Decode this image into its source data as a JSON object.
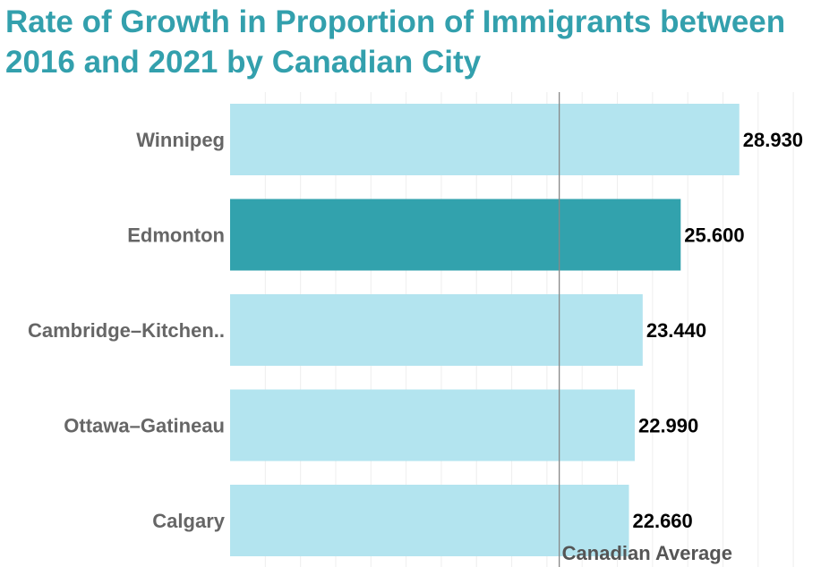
{
  "chart_data": {
    "type": "bar",
    "orientation": "horizontal",
    "title": "Rate of Growth in Proportion of Immigrants between 2016 and 2021 by Canadian City",
    "categories": [
      "Winnipeg",
      "Edmonton",
      "Cambridge–Kitchen..",
      "Ottawa–Gatineau",
      "Calgary"
    ],
    "values": [
      28.93,
      25.6,
      23.44,
      22.99,
      22.66
    ],
    "value_labels": [
      "28.930",
      "25.600",
      "23.440",
      "22.990",
      "22.660"
    ],
    "highlighted_category": "Edmonton",
    "reference_line": {
      "label": "Canadian Average",
      "value": 18.7
    },
    "xlim": [
      0,
      33
    ],
    "grid": "vertical",
    "colors": {
      "bar": "#b3e4ef",
      "highlight": "#32a2ad",
      "title": "#33a0ad",
      "category_label": "#666666",
      "value_label": "#000000",
      "reference_line": "#888888",
      "grid": "#eeeeee"
    }
  }
}
